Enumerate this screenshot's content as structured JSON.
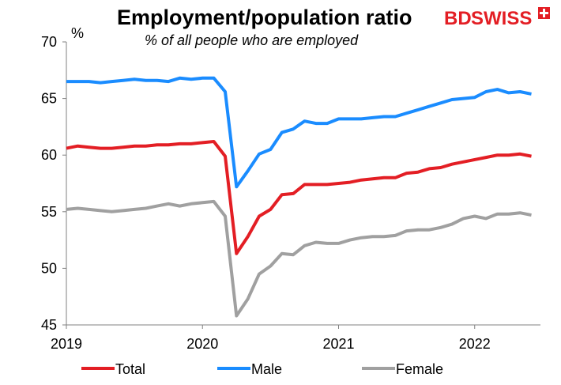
{
  "chart_data": {
    "type": "line",
    "title": "Employment/population ratio",
    "subtitle": "% of all people who are employed",
    "y_unit": "%",
    "brand": {
      "bd": "BD",
      "swiss": "SWISS",
      "color": "#e31e24"
    },
    "x_ticks": [
      "2019",
      "2020",
      "2021",
      "2022"
    ],
    "ylim": [
      45,
      70
    ],
    "y_ticks": [
      45,
      50,
      55,
      60,
      65,
      70
    ],
    "legend_position": "bottom",
    "x": [
      "2019-01",
      "2019-02",
      "2019-03",
      "2019-04",
      "2019-05",
      "2019-06",
      "2019-07",
      "2019-08",
      "2019-09",
      "2019-10",
      "2019-11",
      "2019-12",
      "2020-01",
      "2020-02",
      "2020-03",
      "2020-04",
      "2020-05",
      "2020-06",
      "2020-07",
      "2020-08",
      "2020-09",
      "2020-10",
      "2020-11",
      "2020-12",
      "2021-01",
      "2021-02",
      "2021-03",
      "2021-04",
      "2021-05",
      "2021-06",
      "2021-07",
      "2021-08",
      "2021-09",
      "2021-10",
      "2021-11",
      "2021-12",
      "2022-01",
      "2022-02",
      "2022-03",
      "2022-04",
      "2022-05",
      "2022-06"
    ],
    "series": [
      {
        "name": "Total",
        "color": "#e31e24",
        "values": [
          60.6,
          60.8,
          60.7,
          60.6,
          60.6,
          60.7,
          60.8,
          60.8,
          60.9,
          60.9,
          61.0,
          61.0,
          61.1,
          61.2,
          59.9,
          51.3,
          52.8,
          54.6,
          55.2,
          56.5,
          56.6,
          57.4,
          57.4,
          57.4,
          57.5,
          57.6,
          57.8,
          57.9,
          58.0,
          58.0,
          58.4,
          58.5,
          58.8,
          58.9,
          59.2,
          59.4,
          59.6,
          59.8,
          60.0,
          60.0,
          60.1,
          59.9
        ]
      },
      {
        "name": "Male",
        "color": "#1a8cff",
        "values": [
          66.5,
          66.5,
          66.5,
          66.4,
          66.5,
          66.6,
          66.7,
          66.6,
          66.6,
          66.5,
          66.8,
          66.7,
          66.8,
          66.8,
          65.6,
          57.2,
          58.6,
          60.1,
          60.5,
          62.0,
          62.3,
          63.0,
          62.8,
          62.8,
          63.2,
          63.2,
          63.2,
          63.3,
          63.4,
          63.4,
          63.7,
          64.0,
          64.3,
          64.6,
          64.9,
          65.0,
          65.1,
          65.6,
          65.8,
          65.5,
          65.6,
          65.4
        ]
      },
      {
        "name": "Female",
        "color": "#a0a0a0",
        "values": [
          55.2,
          55.3,
          55.2,
          55.1,
          55.0,
          55.1,
          55.2,
          55.3,
          55.5,
          55.7,
          55.5,
          55.7,
          55.8,
          55.9,
          54.6,
          45.8,
          47.3,
          49.5,
          50.2,
          51.3,
          51.2,
          52.0,
          52.3,
          52.2,
          52.2,
          52.5,
          52.7,
          52.8,
          52.8,
          52.9,
          53.3,
          53.4,
          53.4,
          53.6,
          53.9,
          54.4,
          54.6,
          54.4,
          54.8,
          54.8,
          54.9,
          54.7
        ]
      }
    ]
  }
}
